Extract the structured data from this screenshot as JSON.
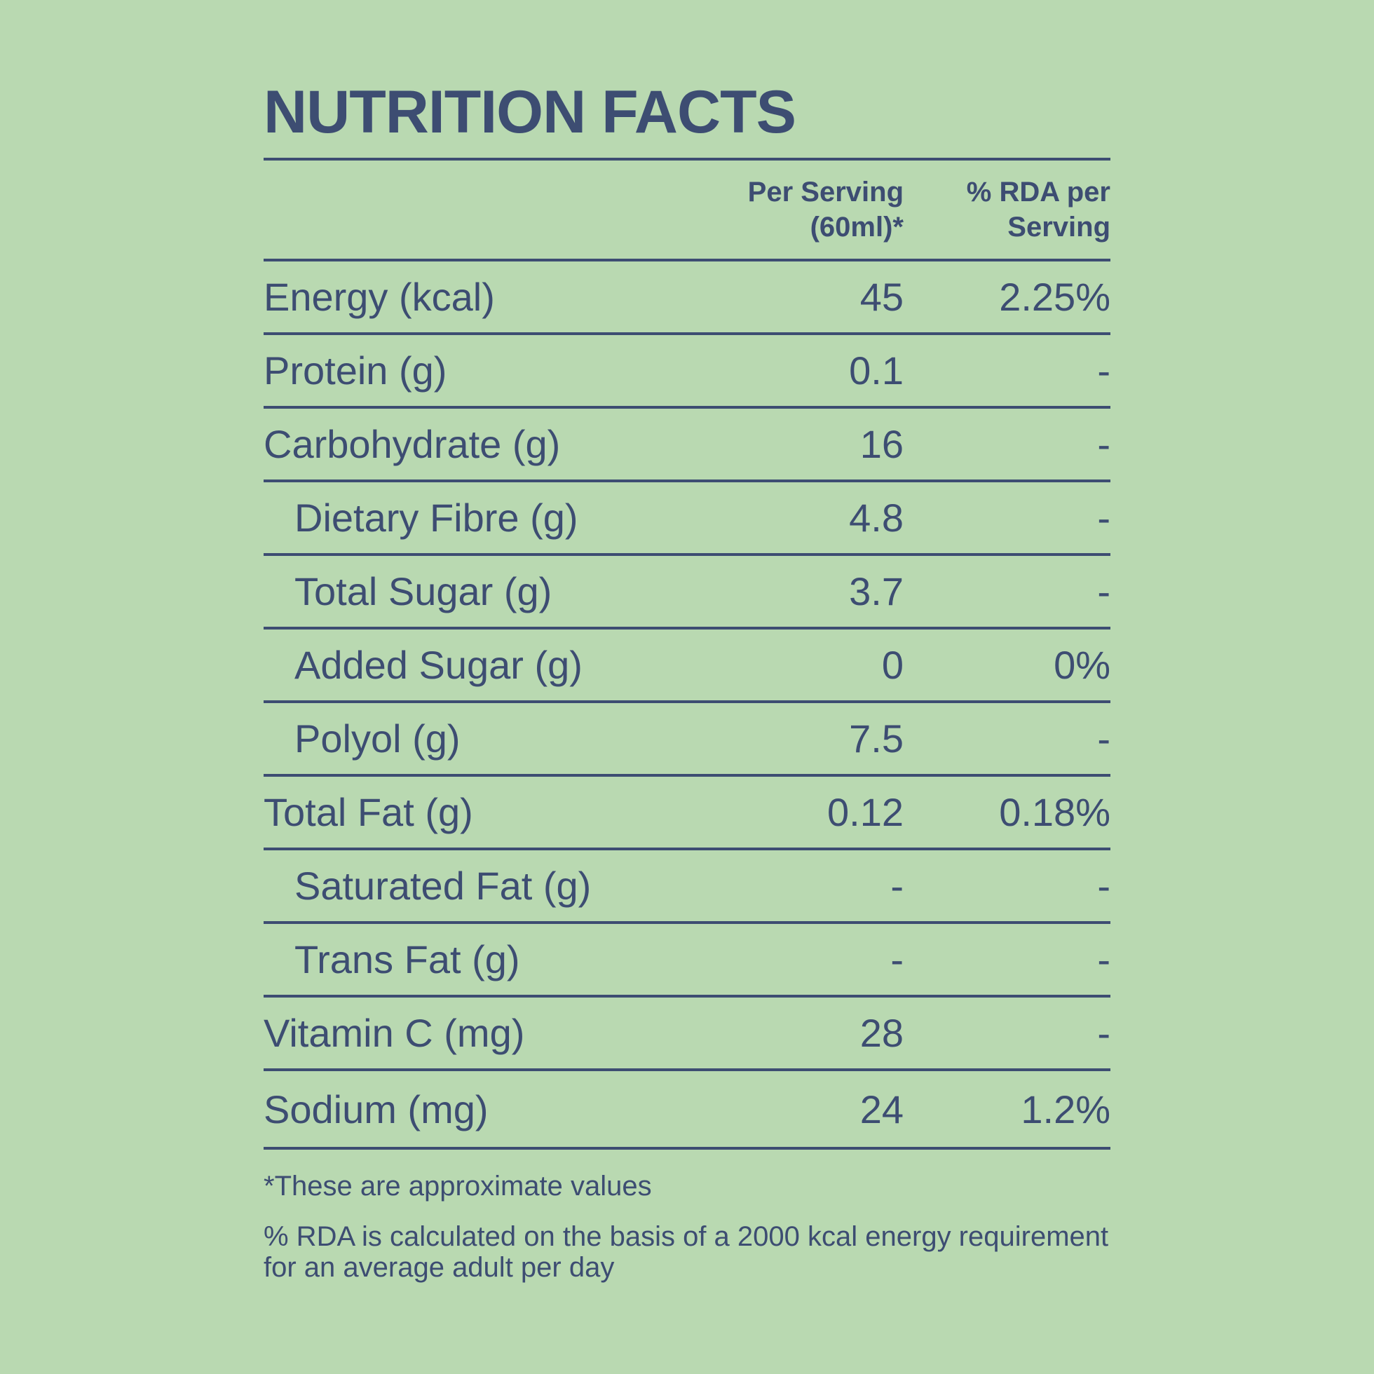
{
  "title": "NUTRITION FACTS",
  "columns": {
    "per_serving_line1": "Per Serving",
    "per_serving_line2": "(60ml)*",
    "rda_line1": "% RDA per",
    "rda_line2": "Serving"
  },
  "rows": [
    {
      "name": "Energy (kcal)",
      "value": "45",
      "rda": "2.25%"
    },
    {
      "name": "Protein (g)",
      "value": "0.1",
      "rda": "-"
    },
    {
      "name": "Carbohydrate (g)",
      "value": "16",
      "rda": "-"
    },
    {
      "name": "Dietary Fibre (g)",
      "value": "4.8",
      "rda": "-"
    },
    {
      "name": "Total Sugar (g)",
      "value": "3.7",
      "rda": "-"
    },
    {
      "name": "Added Sugar (g)",
      "value": "0",
      "rda": "0%"
    },
    {
      "name": "Polyol (g)",
      "value": "7.5",
      "rda": "-"
    },
    {
      "name": "Total Fat (g)",
      "value": "0.12",
      "rda": "0.18%"
    },
    {
      "name": "Saturated Fat (g)",
      "value": "-",
      "rda": "-"
    },
    {
      "name": "Trans Fat (g)",
      "value": "-",
      "rda": "-"
    },
    {
      "name": "Vitamin C (mg)",
      "value": "28",
      "rda": "-"
    },
    {
      "name": "Sodium (mg)",
      "value": "24",
      "rda": "1.2%"
    }
  ],
  "footnotes": {
    "approx": "*These are approximate values",
    "rda_basis": "%  RDA is calculated on the basis of a 2000 kcal energy requirement for an average adult per day"
  },
  "colors": {
    "background": "#b9d9b1",
    "text": "#3d4d72"
  }
}
